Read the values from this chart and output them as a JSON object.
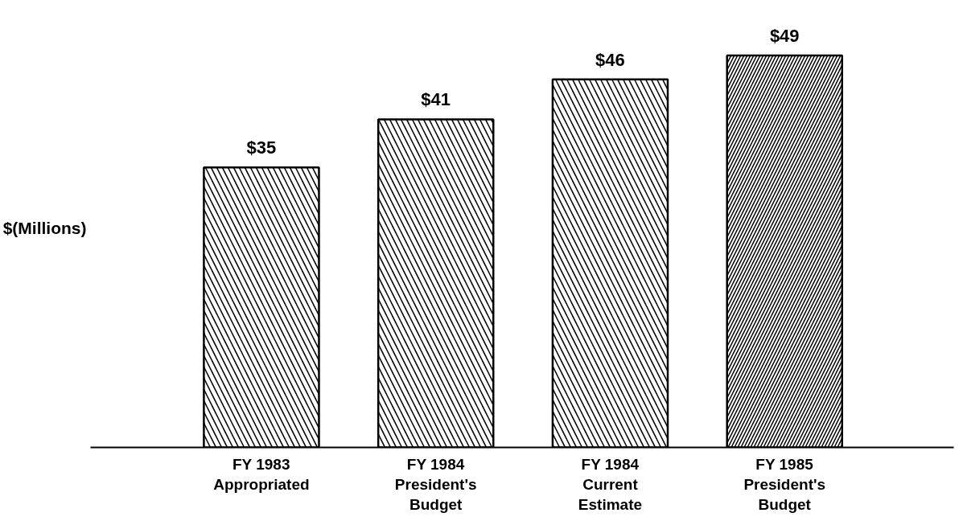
{
  "chart_data": {
    "type": "bar",
    "ylabel": "$(Millions)",
    "categories": [
      "FY 1983\nAppropriated",
      "FY 1984\nPresident's\nBudget",
      "FY 1984\nCurrent\nEstimate",
      "FY 1985\nPresident's\nBudget"
    ],
    "values": [
      35,
      41,
      46,
      49
    ],
    "colors": [
      "#ffffff",
      "#ffffff",
      "#ffffff",
      "#ffffff"
    ],
    "value_labels": [
      "$35",
      "$41",
      "$46",
      "$49"
    ],
    "grid": false
  }
}
